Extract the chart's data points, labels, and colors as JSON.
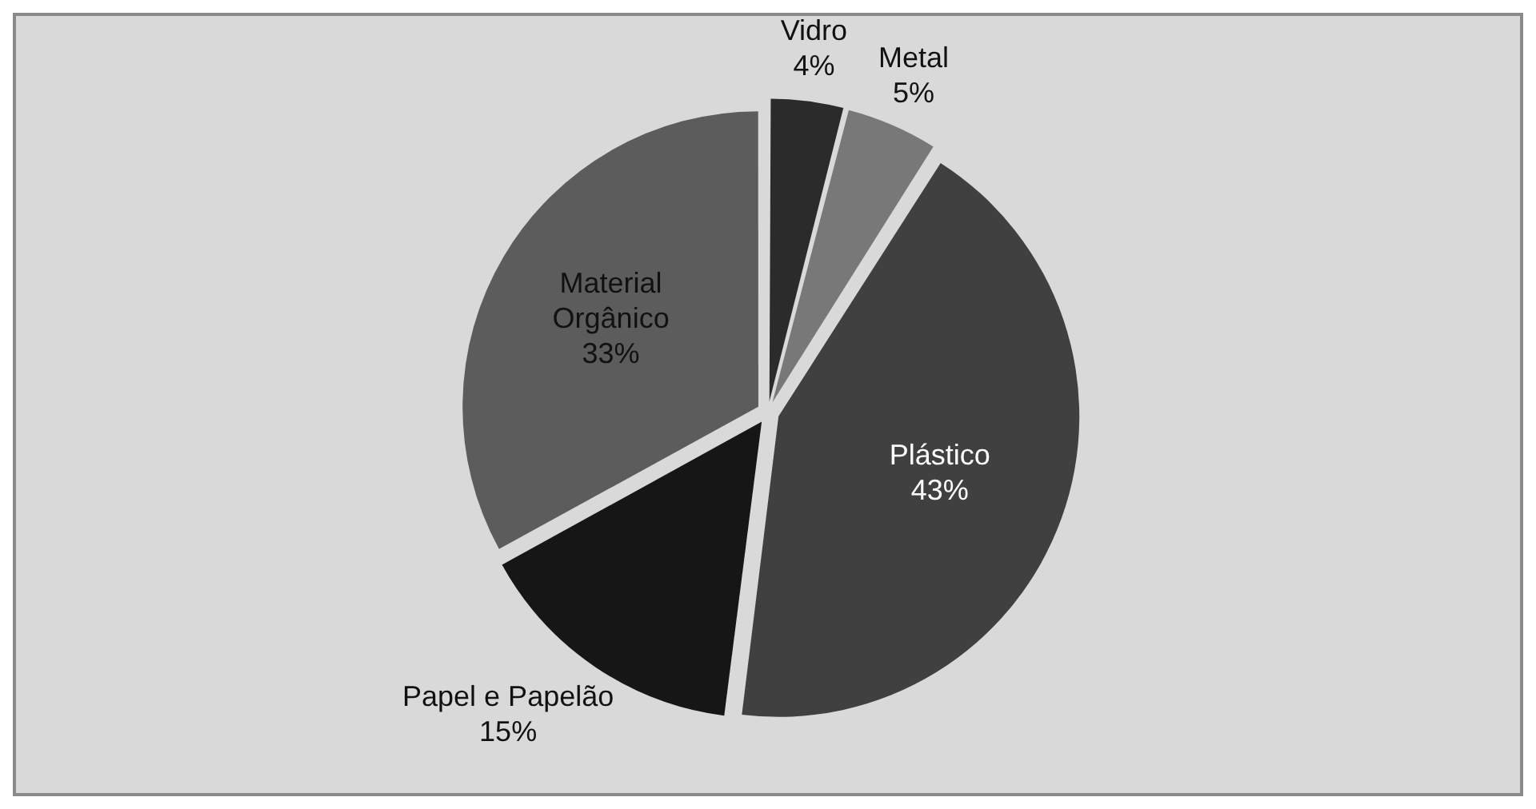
{
  "chart_data": {
    "type": "pie",
    "categories": [
      "Vidro",
      "Metal",
      "Plástico",
      "Papel e Papelão",
      "Material Orgânico"
    ],
    "values": [
      4,
      5,
      43,
      15,
      33
    ],
    "colors": [
      "#2b2b2b",
      "#787878",
      "#404040",
      "#161616",
      "#5c5c5c"
    ],
    "value_labels": [
      "4%",
      "5%",
      "43%",
      "15%",
      "33%"
    ],
    "legend": false
  }
}
